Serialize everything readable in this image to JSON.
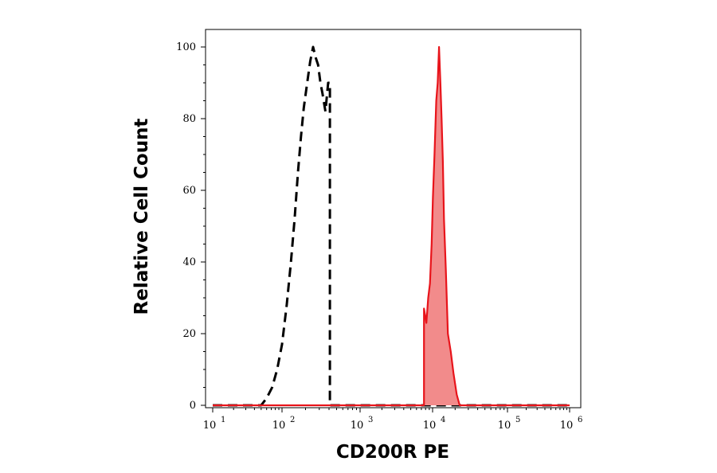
{
  "chart_data": {
    "type": "area",
    "xlabel": "CD200R PE",
    "ylabel": "Relative Cell Count",
    "x_scale": "log",
    "xlim": [
      10,
      1000000
    ],
    "ylim": [
      0,
      105
    ],
    "x_ticks": [
      {
        "value": 10,
        "base": "10",
        "exp": "1"
      },
      {
        "value": 100,
        "base": "10",
        "exp": "2"
      },
      {
        "value": 1000,
        "base": "10",
        "exp": "3"
      },
      {
        "value": 10000,
        "base": "10",
        "exp": "4"
      },
      {
        "value": 100000,
        "base": "10",
        "exp": "5"
      },
      {
        "value": 1000000,
        "base": "10",
        "exp": "6"
      }
    ],
    "y_ticks": [
      {
        "value": 0,
        "label": "0"
      },
      {
        "value": 20,
        "label": "20"
      },
      {
        "value": 40,
        "label": "40"
      },
      {
        "value": 60,
        "label": "60"
      },
      {
        "value": 80,
        "label": "80"
      },
      {
        "value": 100,
        "label": "100"
      }
    ],
    "grid": false,
    "legend": "none",
    "series": [
      {
        "style": "dashed",
        "color": "#000000",
        "fill": "none",
        "points": [
          [
            10,
            0
          ],
          [
            50,
            0
          ],
          [
            60,
            2
          ],
          [
            72,
            5
          ],
          [
            85,
            10
          ],
          [
            100,
            17
          ],
          [
            115,
            28
          ],
          [
            130,
            40
          ],
          [
            145,
            52
          ],
          [
            160,
            65
          ],
          [
            175,
            75
          ],
          [
            190,
            83
          ],
          [
            210,
            90
          ],
          [
            230,
            96
          ],
          [
            250,
            100
          ],
          [
            270,
            97
          ],
          [
            290,
            95
          ],
          [
            310,
            90
          ],
          [
            330,
            87
          ],
          [
            360,
            82
          ],
          [
            390,
            90
          ],
          [
            410,
            90
          ],
          [
            410,
            0
          ],
          [
            1000000,
            0
          ]
        ]
      },
      {
        "style": "solid",
        "color": "#e8141b",
        "fill": "#f28b8b",
        "points": [
          [
            10,
            0
          ],
          [
            7600,
            0
          ],
          [
            7600,
            27
          ],
          [
            8200,
            23
          ],
          [
            8700,
            30
          ],
          [
            9200,
            34
          ],
          [
            9700,
            45
          ],
          [
            10100,
            58
          ],
          [
            10600,
            70
          ],
          [
            11200,
            85
          ],
          [
            11700,
            90
          ],
          [
            12200,
            100
          ],
          [
            12700,
            90
          ],
          [
            13200,
            80
          ],
          [
            13700,
            68
          ],
          [
            14200,
            52
          ],
          [
            15000,
            38
          ],
          [
            16000,
            20
          ],
          [
            17500,
            15
          ],
          [
            19000,
            9
          ],
          [
            21000,
            3
          ],
          [
            23000,
            0
          ],
          [
            1000000,
            0
          ]
        ]
      }
    ]
  }
}
